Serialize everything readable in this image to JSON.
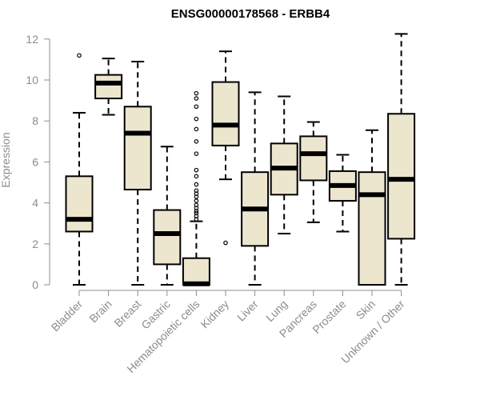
{
  "chart_data": {
    "type": "boxplot",
    "title": "ENSG00000178568 - ERBB4",
    "xlabel": "",
    "ylabel": "Expression",
    "ylim": [
      0,
      12.3
    ],
    "yticks": [
      0,
      2,
      4,
      6,
      8,
      10,
      12
    ],
    "box_fill": "#ede6cf",
    "box_stroke": "#000000",
    "categories": [
      "Bladder",
      "Brain",
      "Breast",
      "Gastric",
      "Hematopoietic cells",
      "Kidney",
      "Liver",
      "Lung",
      "Pancreas",
      "Prostate",
      "Skin",
      "Unknown / Other"
    ],
    "boxes": [
      {
        "min": 0.0,
        "q1": 2.6,
        "median": 3.2,
        "q3": 5.3,
        "max": 8.4,
        "outliers": [
          11.2
        ]
      },
      {
        "min": 8.3,
        "q1": 9.1,
        "median": 9.85,
        "q3": 10.25,
        "max": 11.05,
        "outliers": []
      },
      {
        "min": 0.0,
        "q1": 4.65,
        "median": 7.4,
        "q3": 8.7,
        "max": 10.9,
        "outliers": []
      },
      {
        "min": 0.0,
        "q1": 1.0,
        "median": 2.5,
        "q3": 3.65,
        "max": 6.75,
        "outliers": []
      },
      {
        "min": 0.0,
        "q1": 0.0,
        "median": 0.05,
        "q3": 1.3,
        "max": 3.1,
        "outliers": [
          3.2,
          3.35,
          3.5,
          3.6,
          3.75,
          3.9,
          4.1,
          4.3,
          4.45,
          4.6,
          4.9,
          5.3,
          5.6,
          6.4,
          7.0,
          7.6,
          8.1,
          8.7,
          9.1,
          9.35
        ]
      },
      {
        "min": 5.15,
        "q1": 6.8,
        "median": 7.8,
        "q3": 9.9,
        "max": 11.4,
        "outliers": [
          2.05
        ]
      },
      {
        "min": 0.0,
        "q1": 1.9,
        "median": 3.7,
        "q3": 5.5,
        "max": 9.4,
        "outliers": []
      },
      {
        "min": 2.5,
        "q1": 4.4,
        "median": 5.7,
        "q3": 6.9,
        "max": 9.2,
        "outliers": []
      },
      {
        "min": 3.05,
        "q1": 5.1,
        "median": 6.4,
        "q3": 7.25,
        "max": 7.95,
        "outliers": []
      },
      {
        "min": 2.6,
        "q1": 4.1,
        "median": 4.85,
        "q3": 5.55,
        "max": 6.35,
        "outliers": []
      },
      {
        "min": 0.0,
        "q1": 0.0,
        "median": 4.4,
        "q3": 5.5,
        "max": 7.55,
        "outliers": []
      },
      {
        "min": 0.0,
        "q1": 2.25,
        "median": 5.15,
        "q3": 8.35,
        "max": 12.25,
        "outliers": []
      }
    ]
  }
}
